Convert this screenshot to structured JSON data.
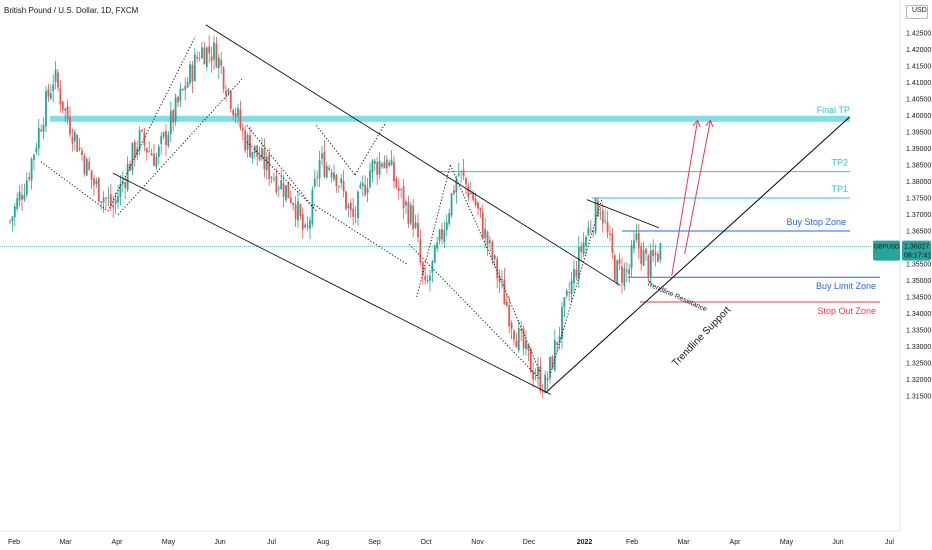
{
  "header": {
    "title": "British Pound / U.S. Dollar, 1D, FXCM"
  },
  "currency_button": {
    "label": "USD",
    "has_chevron": true
  },
  "price_tag": {
    "symbol": "GBPUSD",
    "price": "1.36027",
    "countdown": "08:17:41",
    "color": "#26a69a"
  },
  "colors": {
    "up": "#26a69a",
    "down": "#ef5350",
    "channel": "#000000",
    "tp": "#26c6da",
    "buy_stop": "#2962ff",
    "buy_limit": "#2962ff",
    "stop_out": "#f23645",
    "projection": "#f23645",
    "final_tp_band": "#80deea",
    "last_price_line": "#26a69a"
  },
  "annotations": {
    "final_tp": "Final TP",
    "tp2": "TP2",
    "tp1": "TP1",
    "buy_stop": "Buy Stop Zone",
    "buy_limit": "Buy Limit Zone",
    "stop_out": "Stop Out Zone",
    "trendline_resistance": "Trendline Resistance",
    "trendline_support": "Trendline Support"
  },
  "chart_data": {
    "type": "candlestick",
    "title": "British Pound / U.S. Dollar, 1D, FXCM",
    "x_ticks": [
      "Feb",
      "Mar",
      "Apr",
      "May",
      "Jun",
      "Jul",
      "Aug",
      "Sep",
      "Oct",
      "Nov",
      "Dec",
      "2022",
      "Feb",
      "Mar",
      "Apr",
      "May",
      "Jun",
      "Jul"
    ],
    "y_ticks": [
      "1.42500",
      "1.42000",
      "1.41500",
      "1.41000",
      "1.40500",
      "1.40000",
      "1.39500",
      "1.39000",
      "1.38500",
      "1.38000",
      "1.37500",
      "1.37000",
      "1.36500",
      "1.36000",
      "1.35500",
      "1.35000",
      "1.34500",
      "1.34000",
      "1.33500",
      "1.33000",
      "1.32500",
      "1.32000",
      "1.31500"
    ],
    "ylim": [
      1.313,
      1.4305
    ],
    "last_price": 1.36027,
    "levels": {
      "final_tp": 1.399,
      "tp2": 1.383,
      "tp1": 1.375,
      "buy_stop": 1.365,
      "buy_limit": 1.351,
      "stop_out": 1.3435
    },
    "price_path": [
      {
        "month": 0.0,
        "price": 1.368
      },
      {
        "month": 0.35,
        "price": 1.382
      },
      {
        "month": 0.6,
        "price": 1.398
      },
      {
        "month": 0.85,
        "price": 1.412
      },
      {
        "month": 1.1,
        "price": 1.4
      },
      {
        "month": 1.6,
        "price": 1.38
      },
      {
        "month": 2.0,
        "price": 1.372
      },
      {
        "month": 2.5,
        "price": 1.393
      },
      {
        "month": 2.85,
        "price": 1.387
      },
      {
        "month": 3.3,
        "price": 1.405
      },
      {
        "month": 3.7,
        "price": 1.42
      },
      {
        "month": 4.0,
        "price": 1.419
      },
      {
        "month": 4.3,
        "price": 1.405
      },
      {
        "month": 4.55,
        "price": 1.393
      },
      {
        "month": 4.9,
        "price": 1.386
      },
      {
        "month": 5.5,
        "price": 1.375
      },
      {
        "month": 5.75,
        "price": 1.362
      },
      {
        "month": 6.0,
        "price": 1.386
      },
      {
        "month": 6.3,
        "price": 1.384
      },
      {
        "month": 6.65,
        "price": 1.368
      },
      {
        "month": 7.0,
        "price": 1.384
      },
      {
        "month": 7.3,
        "price": 1.387
      },
      {
        "month": 7.6,
        "price": 1.375
      },
      {
        "month": 7.85,
        "price": 1.368
      },
      {
        "month": 8.05,
        "price": 1.346
      },
      {
        "month": 8.35,
        "price": 1.362
      },
      {
        "month": 8.7,
        "price": 1.383
      },
      {
        "month": 9.0,
        "price": 1.375
      },
      {
        "month": 9.4,
        "price": 1.355
      },
      {
        "month": 9.8,
        "price": 1.335
      },
      {
        "month": 10.15,
        "price": 1.323
      },
      {
        "month": 10.4,
        "price": 1.318
      },
      {
        "month": 10.75,
        "price": 1.34
      },
      {
        "month": 11.1,
        "price": 1.36
      },
      {
        "month": 11.45,
        "price": 1.374
      },
      {
        "month": 11.75,
        "price": 1.353
      },
      {
        "month": 12.0,
        "price": 1.352
      },
      {
        "month": 12.15,
        "price": 1.362
      },
      {
        "month": 12.4,
        "price": 1.354
      },
      {
        "month": 12.65,
        "price": 1.36
      }
    ],
    "channel": {
      "upper": [
        {
          "month": 3.8,
          "price": 1.4275
        },
        {
          "month": 11.85,
          "price": 1.3485
        }
      ],
      "lower": [
        {
          "month": 2.0,
          "price": 1.3825
        },
        {
          "month": 10.5,
          "price": 1.3155
        }
      ]
    },
    "support_trendline": [
      {
        "month": 10.4,
        "price": 1.316
      },
      {
        "month": 16.3,
        "price": 1.3995
      }
    ],
    "resistance_trendline": [
      {
        "month": 11.2,
        "price": 1.3745
      },
      {
        "month": 12.6,
        "price": 1.366
      }
    ],
    "projections": [
      {
        "from": {
          "month": 12.85,
          "price": 1.3515
        },
        "to": {
          "month": 13.35,
          "price": 1.3985
        }
      },
      {
        "from": {
          "month": 13.1,
          "price": 1.358
        },
        "to": {
          "month": 13.6,
          "price": 1.3985
        }
      }
    ],
    "grid": false,
    "legend": "none"
  }
}
